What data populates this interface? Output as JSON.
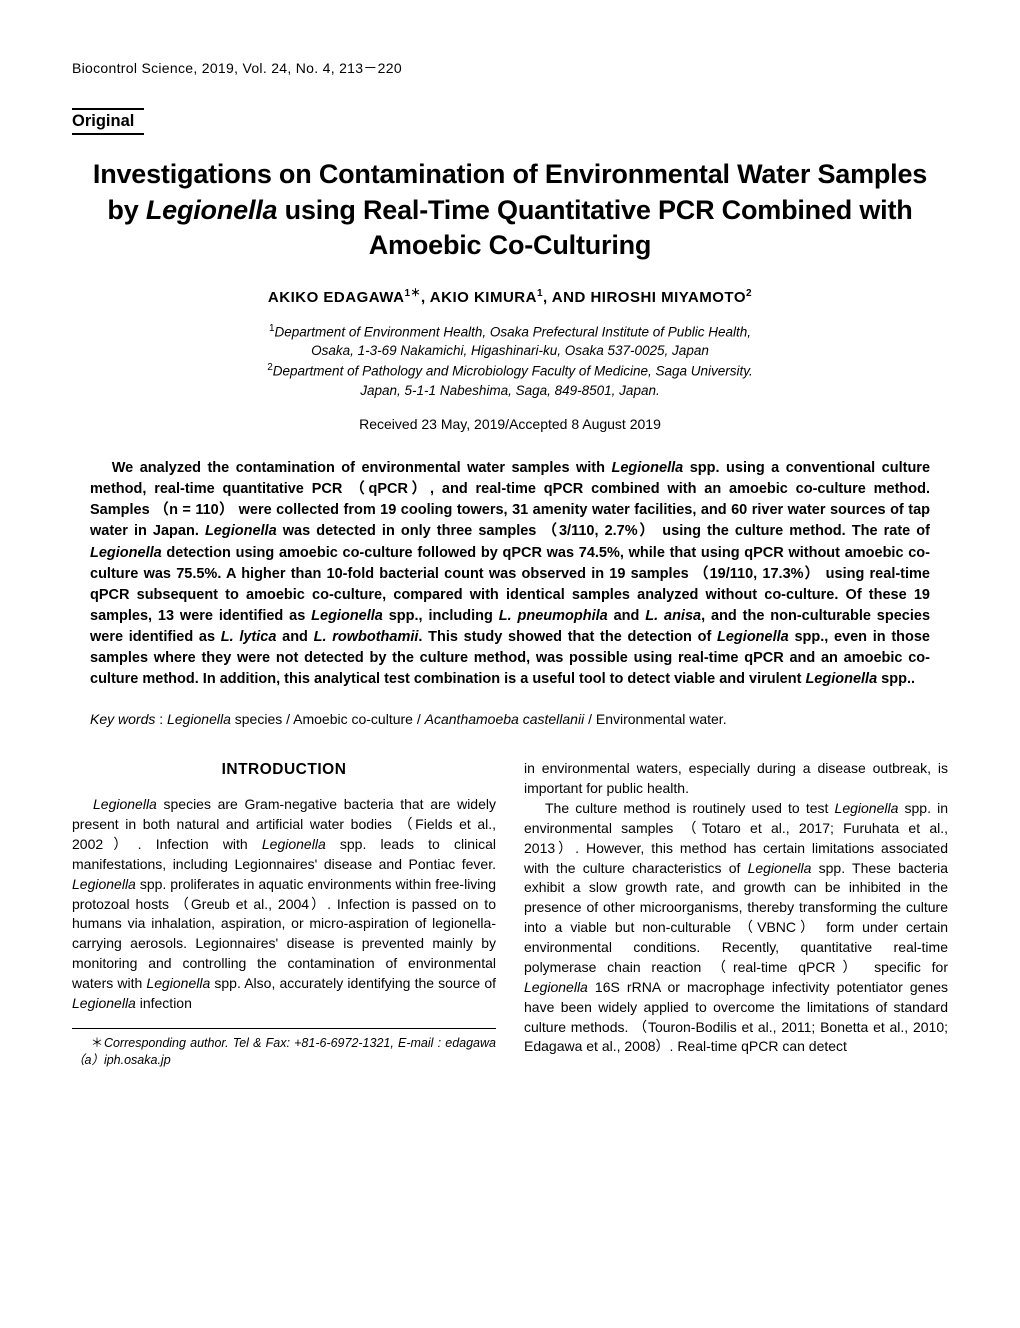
{
  "journal_header": "Biocontrol Science, 2019, Vol. 24, No. 4, 213－220",
  "section_label": "Original",
  "title_line1": "Investigations on Contamination of Environmental Water Samples",
  "title_line2": "by ",
  "title_line2_italic": "Legionella",
  "title_line2_cont": " using Real-Time Quantitative PCR Combined with",
  "title_line3": "Amoebic Co-Culturing",
  "author1": "AKIKO EDAGAWA",
  "author1_sup": "1＊",
  "author_sep1": ", ",
  "author2": "AKIO KIMURA",
  "author2_sup": "1",
  "author_sep2": ", AND ",
  "author3": "HIROSHI MIYAMOTO",
  "author3_sup": "2",
  "aff1_sup": "1",
  "aff1_line1": "Department of Environment Health, Osaka Prefectural Institute of Public Health,",
  "aff1_line2": "Osaka, 1-3-69 Nakamichi, Higashinari-ku, Osaka 537-0025, Japan",
  "aff2_sup": "2",
  "aff2_line1": "Department of Pathology and Microbiology Faculty of Medicine, Saga University.",
  "aff2_line2": "Japan, 5-1-1 Nabeshima, Saga, 849-8501, Japan.",
  "received": "Received 23 May, 2019/Accepted 8 August 2019",
  "abstract_p1a": "We analyzed the contamination of environmental water samples with ",
  "abstract_p1b_i": "Legionella",
  "abstract_p1c": " spp. using a conventional culture method, real-time quantitative PCR （qPCR）, and real-time qPCR combined with an amoebic co-culture method. Samples （n = 110） were collected from 19 cooling towers, 31 amenity water facilities, and 60 river water sources of tap water in Japan. ",
  "abstract_p1d_i": "Legionella",
  "abstract_p1e": " was detected in only three samples （3/110, 2.7%） using the culture method. The rate of ",
  "abstract_p1f_i": "Legionella",
  "abstract_p1g": " detection using amoebic co-culture followed by qPCR was 74.5%, while that using qPCR without amoebic co-culture was 75.5%. A higher than 10-fold bacterial count was observed in 19 samples （19/110, 17.3%） using real-time qPCR subsequent to amoebic co-culture, compared with identical samples analyzed without co-culture. Of these 19 samples, 13 were identified as ",
  "abstract_p1h_i": "Legionella",
  "abstract_p1i": " spp., including ",
  "abstract_p1j_i": "L. pneumophila",
  "abstract_p1k": " and ",
  "abstract_p1l_i": "L. anisa",
  "abstract_p1m": ", and the non-culturable species were identified as ",
  "abstract_p1n_i": "L. lytica",
  "abstract_p1o": " and ",
  "abstract_p1p_i": "L. rowbothamii",
  "abstract_p1q": ". This study showed that the detection of ",
  "abstract_p1r_i": "Legionella",
  "abstract_p1s": " spp., even in those samples where they were not detected by the culture method, was possible using real-time qPCR and an amoebic co-culture method. In addition, this analytical test combination is a useful tool to detect viable and virulent ",
  "abstract_p1t_i": "Legionella",
  "abstract_p1u": " spp..",
  "keywords_label": "Key words",
  "keywords_sep": " : ",
  "kw1_i": "Legionella",
  "kw1_t": " species / Amoebic co-culture / ",
  "kw2_i": "Acanthamoeba castellanii",
  "kw2_t": " / Environmental water.",
  "intro_heading": "INTRODUCTION",
  "col1_a_i": "Legionella",
  "col1_a": " species are Gram-negative bacteria that are widely present in both natural and artificial water bodies （Fields et al., 2002）. Infection with ",
  "col1_b_i": "Legionella",
  "col1_b": " spp. leads to clinical manifestations, including Legionnaires' disease and Pontiac fever. ",
  "col1_c_i": "Legionella",
  "col1_c": " spp. proliferates in aquatic environments within free-living protozoal hosts （Greub et al., 2004）. Infection is passed on to humans via inhalation, aspiration, or micro-aspiration of legionella-carrying aerosols. Legionnaires' disease is prevented mainly by monitoring and controlling the contamination of environmental waters with ",
  "col1_d_i": "Legionella",
  "col1_d": " spp. Also, accurately identifying the source of ",
  "col1_e_i": "Legionella",
  "col1_e": " infection",
  "footnote_ast": "＊",
  "footnote_text": "Corresponding author. Tel & Fax: +81-6-6972-1321, E-mail : edagawa（a）iph.osaka.jp",
  "col2_a": "in environmental waters, especially during a disease outbreak, is important for public health.",
  "col2_b": "The culture method is routinely used to test ",
  "col2_b_i": "Legionella",
  "col2_c": " spp. in environmental samples （Totaro et al., 2017; Furuhata et al., 2013）. However, this method has certain limitations associated with the culture characteristics of ",
  "col2_d_i": "Legionella",
  "col2_d": " spp. These bacteria exhibit a slow growth rate, and growth can be inhibited in the presence of other microorganisms, thereby transforming the culture into a viable but non-culturable （VBNC） form under certain environmental conditions. Recently, quantitative real-time polymerase chain reaction （real-time qPCR） specific for ",
  "col2_e_i": "Legionella",
  "col2_e": " 16S rRNA or macrophage infectivity potentiator genes have been widely applied to overcome the limitations of standard culture methods. （Touron-Bodilis et al., 2011; Bonetta et al., 2010; Edagawa et al., 2008）. Real-time qPCR can detect"
}
